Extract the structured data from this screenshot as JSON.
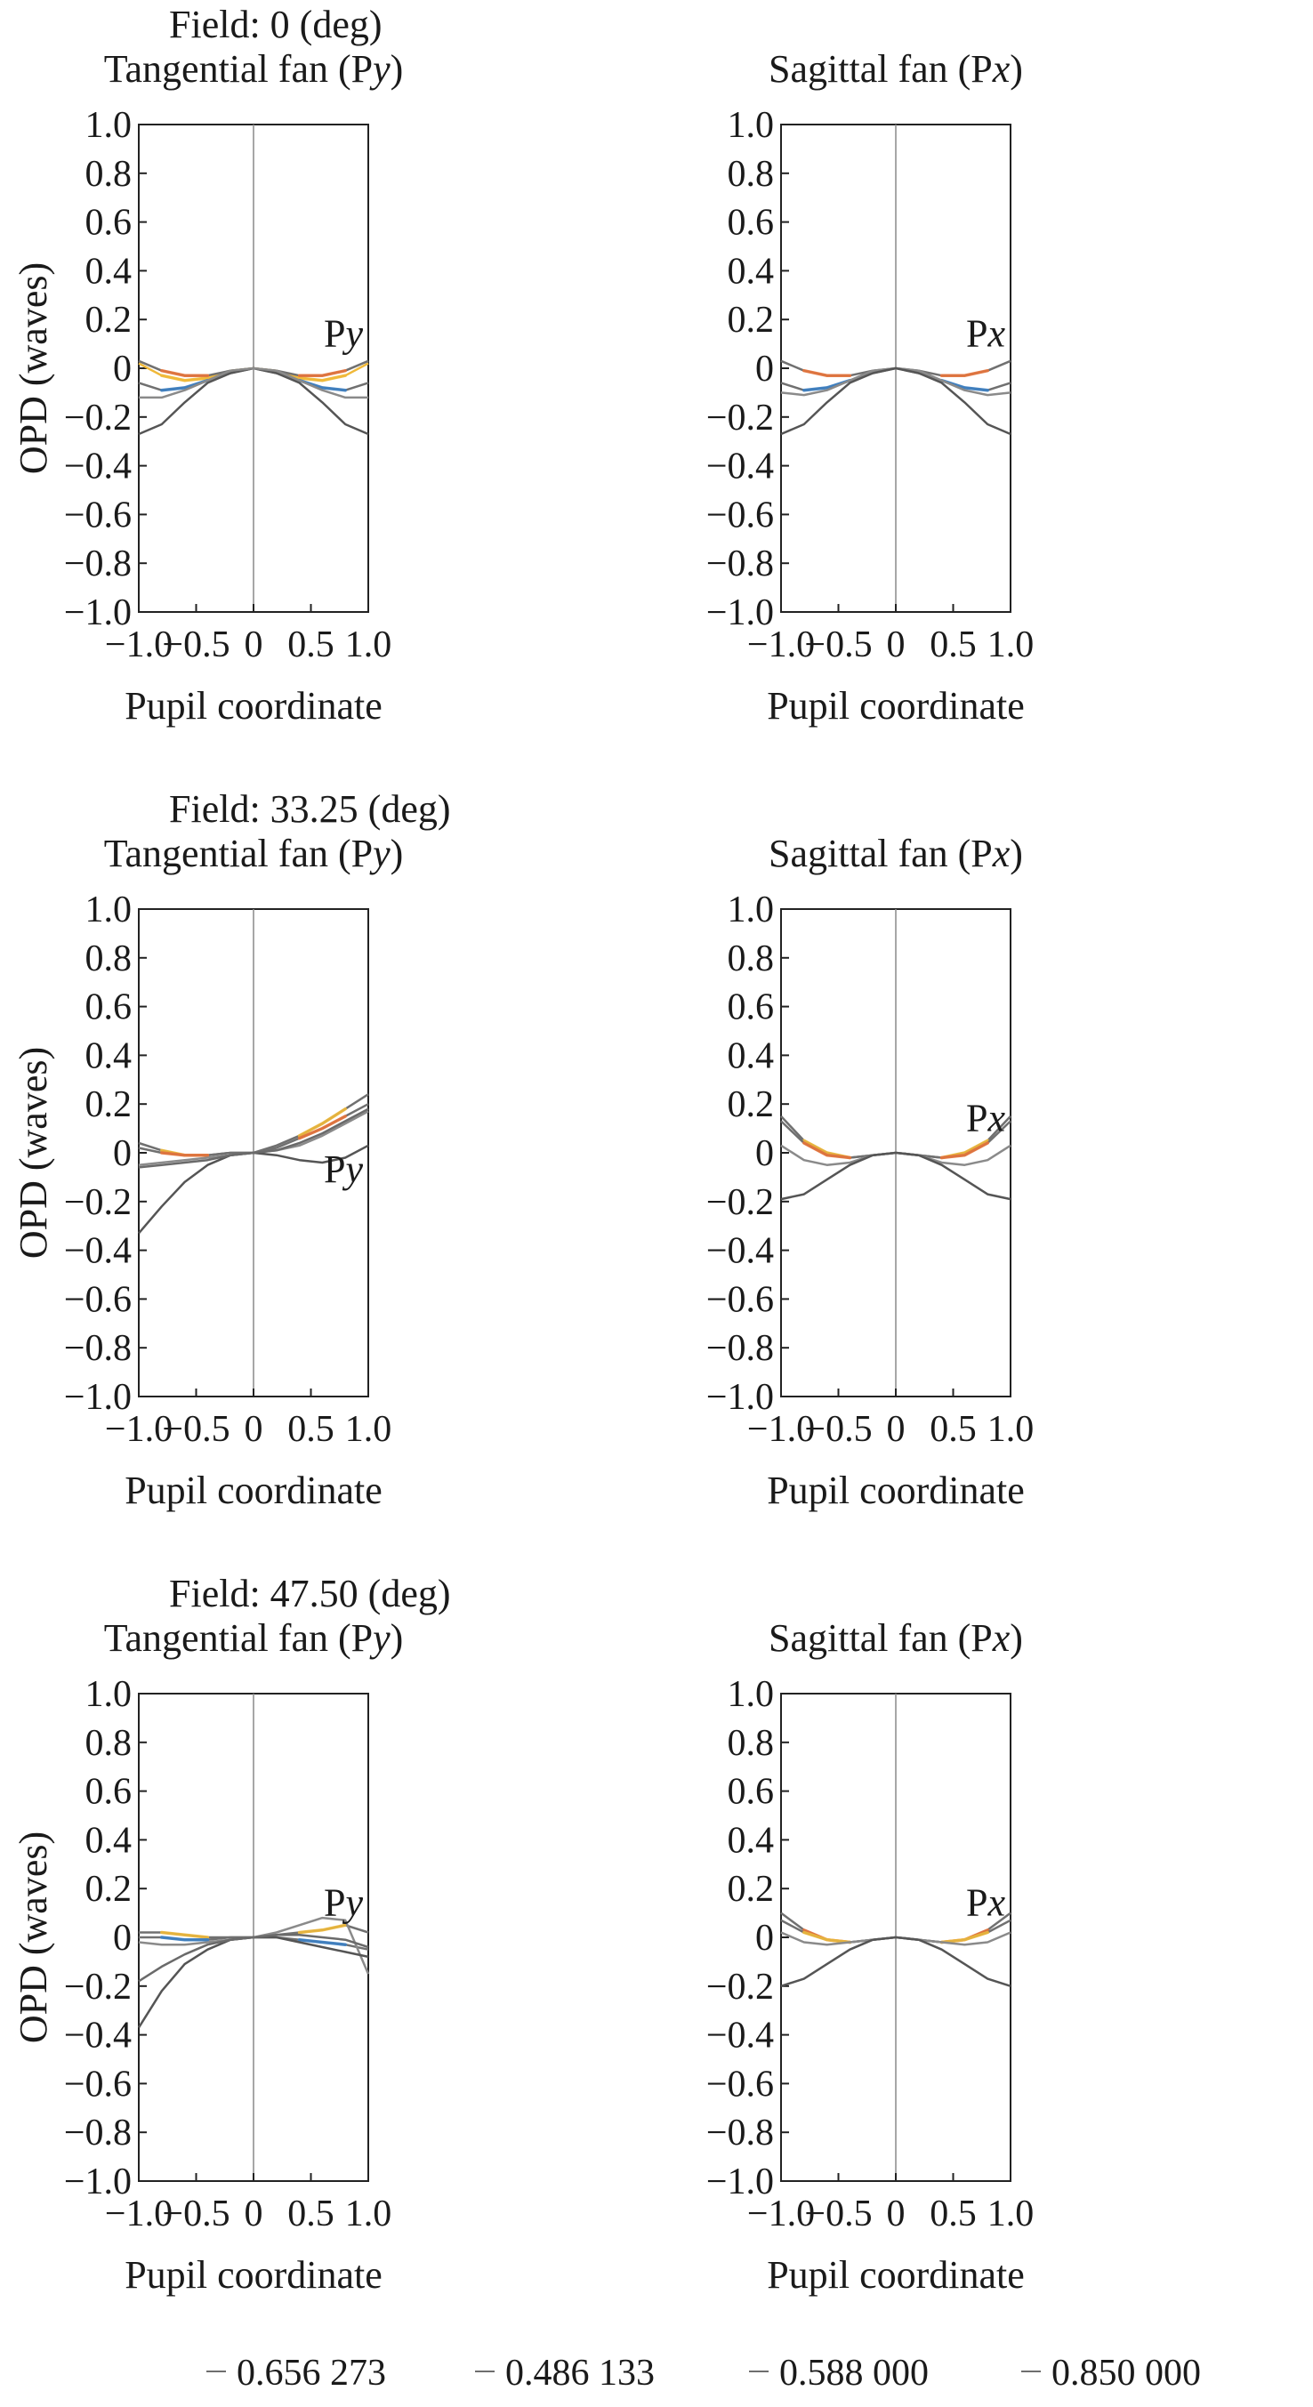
{
  "chart_data": {
    "type": "line",
    "x_axis_label": "Pupil coordinate",
    "y_axis_label": "OPD (waves)",
    "xlim": [
      -1.0,
      1.0
    ],
    "ylim": [
      -1.0,
      1.0
    ],
    "x_ticks": [
      "−1.0",
      "−0.5",
      "0",
      "0.5",
      "1.0"
    ],
    "y_ticks": [
      "1.0",
      "0.8",
      "0.6",
      "0.4",
      "0.2",
      "0",
      "−0.2",
      "−0.4",
      "−0.6",
      "−0.8",
      "−1.0"
    ],
    "legend": [
      {
        "label": "0.656 273",
        "color": "#6e6e6e"
      },
      {
        "label": "0.486 133",
        "color": "#6e6e6e"
      },
      {
        "label": "0.588 000",
        "color": "#6e6e6e"
      },
      {
        "label": "0.850 000",
        "color": "#6e6e6e"
      }
    ],
    "fields": [
      {
        "label": "Field: 0 (deg)",
        "panels": [
          {
            "title": "Tangential fan (Py)",
            "fan_label": "Py",
            "x": [
              -1.0,
              -0.8,
              -0.6,
              -0.4,
              -0.2,
              0,
              0.2,
              0.4,
              0.6,
              0.8,
              1.0
            ],
            "series": [
              {
                "color": "#f0b93a",
                "highlight": "#f0b93a",
                "values": [
                  0.02,
                  -0.03,
                  -0.05,
                  -0.04,
                  -0.01,
                  0,
                  -0.01,
                  -0.04,
                  -0.05,
                  -0.03,
                  0.02
                ]
              },
              {
                "color": "#707070",
                "highlight": "#3b7fc4",
                "values": [
                  -0.06,
                  -0.09,
                  -0.08,
                  -0.05,
                  -0.02,
                  0,
                  -0.02,
                  -0.05,
                  -0.08,
                  -0.09,
                  -0.06
                ]
              },
              {
                "color": "#707070",
                "highlight": "#e8743b",
                "values": [
                  0.03,
                  -0.01,
                  -0.03,
                  -0.03,
                  -0.01,
                  0,
                  -0.01,
                  -0.03,
                  -0.03,
                  -0.01,
                  0.03
                ]
              },
              {
                "color": "#555555",
                "values": [
                  -0.27,
                  -0.23,
                  -0.14,
                  -0.06,
                  -0.02,
                  0,
                  -0.02,
                  -0.06,
                  -0.14,
                  -0.23,
                  -0.27
                ]
              },
              {
                "color": "#8a8a8a",
                "values": [
                  -0.12,
                  -0.12,
                  -0.09,
                  -0.05,
                  -0.01,
                  0,
                  -0.01,
                  -0.05,
                  -0.09,
                  -0.12,
                  -0.12
                ]
              }
            ]
          },
          {
            "title": "Sagittal fan (Px)",
            "fan_label": "Px",
            "x": [
              -1.0,
              -0.8,
              -0.6,
              -0.4,
              -0.2,
              0,
              0.2,
              0.4,
              0.6,
              0.8,
              1.0
            ],
            "series": [
              {
                "color": "#707070",
                "highlight": "#e8743b",
                "values": [
                  0.03,
                  -0.01,
                  -0.03,
                  -0.03,
                  -0.01,
                  0,
                  -0.01,
                  -0.03,
                  -0.03,
                  -0.01,
                  0.03
                ]
              },
              {
                "color": "#707070",
                "highlight": "#3b7fc4",
                "values": [
                  -0.06,
                  -0.09,
                  -0.08,
                  -0.05,
                  -0.02,
                  0,
                  -0.02,
                  -0.05,
                  -0.08,
                  -0.09,
                  -0.06
                ]
              },
              {
                "color": "#8a8a8a",
                "values": [
                  -0.1,
                  -0.11,
                  -0.09,
                  -0.05,
                  -0.01,
                  0,
                  -0.01,
                  -0.05,
                  -0.09,
                  -0.11,
                  -0.1
                ]
              },
              {
                "color": "#555555",
                "values": [
                  -0.27,
                  -0.23,
                  -0.14,
                  -0.06,
                  -0.02,
                  0,
                  -0.02,
                  -0.06,
                  -0.14,
                  -0.23,
                  -0.27
                ]
              }
            ]
          }
        ]
      },
      {
        "label": "Field: 33.25 (deg)",
        "panels": [
          {
            "title": "Tangential fan (Py)",
            "fan_label": "Py",
            "x": [
              -1.0,
              -0.8,
              -0.6,
              -0.4,
              -0.2,
              0,
              0.2,
              0.4,
              0.6,
              0.8,
              1.0
            ],
            "series": [
              {
                "color": "#707070",
                "highlight": "#f0b93a",
                "values": [
                  0.04,
                  0.01,
                  -0.01,
                  -0.01,
                  0.0,
                  0,
                  0.03,
                  0.07,
                  0.12,
                  0.18,
                  0.24
                ]
              },
              {
                "color": "#707070",
                "highlight": "#e8743b",
                "values": [
                  0.02,
                  0.0,
                  -0.01,
                  -0.01,
                  0.0,
                  0,
                  0.02,
                  0.06,
                  0.1,
                  0.15,
                  0.2
                ]
              },
              {
                "color": "#8a8a8a",
                "values": [
                  -0.05,
                  -0.04,
                  -0.03,
                  -0.02,
                  -0.01,
                  0,
                  0.01,
                  0.03,
                  0.07,
                  0.12,
                  0.17
                ]
              },
              {
                "color": "#555555",
                "values": [
                  -0.33,
                  -0.22,
                  -0.12,
                  -0.05,
                  -0.01,
                  0,
                  -0.01,
                  -0.03,
                  -0.04,
                  -0.02,
                  0.03
                ]
              },
              {
                "color": "#6a6a6a",
                "values": [
                  -0.06,
                  -0.05,
                  -0.04,
                  -0.03,
                  -0.01,
                  0,
                  0.01,
                  0.04,
                  0.08,
                  0.13,
                  0.18
                ]
              }
            ]
          },
          {
            "title": "Sagittal fan (Px)",
            "fan_label": "Px",
            "x": [
              -1.0,
              -0.8,
              -0.6,
              -0.4,
              -0.2,
              0,
              0.2,
              0.4,
              0.6,
              0.8,
              1.0
            ],
            "series": [
              {
                "color": "#707070",
                "highlight": "#f0b93a",
                "values": [
                  0.15,
                  0.05,
                  0.0,
                  -0.02,
                  -0.01,
                  0,
                  -0.01,
                  -0.02,
                  0.0,
                  0.05,
                  0.15
                ]
              },
              {
                "color": "#707070",
                "highlight": "#e8743b",
                "values": [
                  0.13,
                  0.04,
                  -0.01,
                  -0.02,
                  -0.01,
                  0,
                  -0.01,
                  -0.02,
                  -0.01,
                  0.04,
                  0.13
                ]
              },
              {
                "color": "#8a8a8a",
                "values": [
                  0.03,
                  -0.03,
                  -0.05,
                  -0.04,
                  -0.01,
                  0,
                  -0.01,
                  -0.04,
                  -0.05,
                  -0.03,
                  0.03
                ]
              },
              {
                "color": "#555555",
                "values": [
                  -0.19,
                  -0.17,
                  -0.11,
                  -0.05,
                  -0.01,
                  0,
                  -0.01,
                  -0.05,
                  -0.11,
                  -0.17,
                  -0.19
                ]
              }
            ]
          }
        ]
      },
      {
        "label": "Field: 47.50 (deg)",
        "panels": [
          {
            "title": "Tangential fan (Py)",
            "fan_label": "Py",
            "x": [
              -1.0,
              -0.8,
              -0.6,
              -0.4,
              -0.2,
              0,
              0.2,
              0.4,
              0.6,
              0.8,
              1.0
            ],
            "series": [
              {
                "color": "#707070",
                "highlight": "#f0b93a",
                "values": [
                  0.02,
                  0.02,
                  0.01,
                  0.0,
                  0.0,
                  0,
                  0.01,
                  0.02,
                  0.03,
                  0.05,
                  0.02
                ]
              },
              {
                "color": "#707070",
                "highlight": "#3b7fc4",
                "values": [
                  0.0,
                  0.0,
                  -0.01,
                  -0.01,
                  0.0,
                  0,
                  0.0,
                  -0.01,
                  -0.02,
                  -0.03,
                  -0.05
                ]
              },
              {
                "color": "#8a8a8a",
                "values": [
                  -0.02,
                  -0.03,
                  -0.03,
                  -0.02,
                  -0.01,
                  0,
                  0.02,
                  0.05,
                  0.08,
                  0.07,
                  -0.15
                ]
              },
              {
                "color": "#555555",
                "values": [
                  -0.37,
                  -0.22,
                  -0.11,
                  -0.05,
                  -0.01,
                  0,
                  0.0,
                  -0.02,
                  -0.04,
                  -0.06,
                  -0.08
                ]
              },
              {
                "color": "#6a6a6a",
                "values": [
                  -0.18,
                  -0.12,
                  -0.07,
                  -0.03,
                  -0.01,
                  0,
                  0.01,
                  0.01,
                  0.0,
                  -0.01,
                  -0.04
                ]
              }
            ]
          },
          {
            "title": "Sagittal fan (Px)",
            "fan_label": "Px",
            "x": [
              -1.0,
              -0.8,
              -0.6,
              -0.4,
              -0.2,
              0,
              0.2,
              0.4,
              0.6,
              0.8,
              1.0
            ],
            "series": [
              {
                "color": "#707070",
                "highlight": "#e8743b",
                "values": [
                  0.1,
                  0.03,
                  -0.01,
                  -0.02,
                  -0.01,
                  0,
                  -0.01,
                  -0.02,
                  -0.01,
                  0.03,
                  0.1
                ]
              },
              {
                "color": "#707070",
                "highlight": "#f0b93a",
                "values": [
                  0.07,
                  0.02,
                  -0.01,
                  -0.02,
                  -0.01,
                  0,
                  -0.01,
                  -0.02,
                  -0.01,
                  0.02,
                  0.07
                ]
              },
              {
                "color": "#8a8a8a",
                "values": [
                  0.02,
                  -0.02,
                  -0.03,
                  -0.02,
                  -0.01,
                  0,
                  -0.01,
                  -0.02,
                  -0.03,
                  -0.02,
                  0.02
                ]
              },
              {
                "color": "#555555",
                "values": [
                  -0.2,
                  -0.17,
                  -0.11,
                  -0.05,
                  -0.01,
                  0,
                  -0.01,
                  -0.05,
                  -0.11,
                  -0.17,
                  -0.2
                ]
              }
            ]
          }
        ]
      }
    ]
  }
}
